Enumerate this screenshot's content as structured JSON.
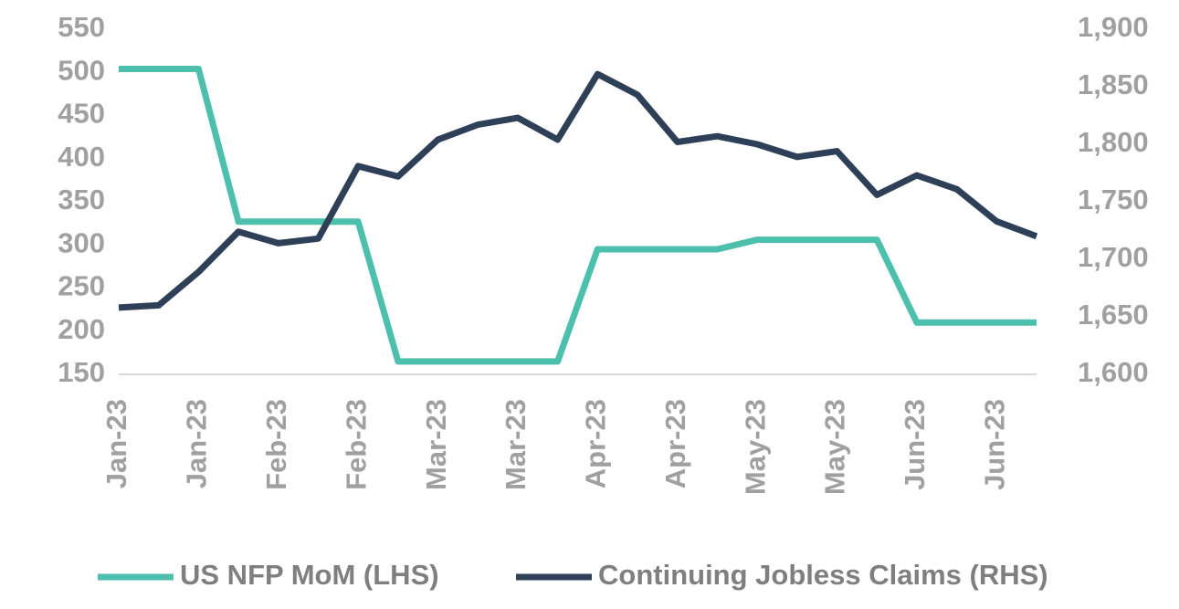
{
  "chart_data": {
    "type": "line",
    "categories": [
      "Jan-23",
      null,
      "Jan-23",
      null,
      "Feb-23",
      null,
      "Feb-23",
      null,
      "Mar-23",
      null,
      "Mar-23",
      null,
      "Apr-23",
      null,
      "Apr-23",
      null,
      "May-23",
      null,
      "May-23",
      null,
      "Jun-23",
      null,
      "Jun-23",
      null
    ],
    "series": [
      {
        "name": "US NFP MoM (LHS)",
        "color": "#4dbfad",
        "values": [
          504,
          504,
          504,
          327,
          327,
          327,
          327,
          165,
          165,
          165,
          165,
          165,
          295,
          295,
          295,
          295,
          306,
          306,
          306,
          306,
          210,
          210,
          210,
          210
        ]
      },
      {
        "name": "Continuing Jobless Claims (RHS)",
        "color": "#2e4057",
        "axis": "y2",
        "values": [
          1658,
          1660,
          1689,
          1724,
          1714,
          1718,
          1781,
          1772,
          1804,
          1817,
          1823,
          1804,
          1861,
          1843,
          1802,
          1807,
          1800,
          1789,
          1794,
          1756,
          1773,
          1761,
          1733,
          1720
        ]
      }
    ],
    "ylim": [
      150,
      550
    ],
    "yticks": [
      150,
      200,
      250,
      300,
      350,
      400,
      450,
      500,
      550
    ],
    "y2lim": [
      1600,
      1900
    ],
    "y2ticks": [
      {
        "value": 1600,
        "label": "1,600"
      },
      {
        "value": 1650,
        "label": "1,650"
      },
      {
        "value": 1700,
        "label": "1,700"
      },
      {
        "value": 1750,
        "label": "1,750"
      },
      {
        "value": 1800,
        "label": "1,800"
      },
      {
        "value": 1850,
        "label": "1,850"
      },
      {
        "value": 1900,
        "label": "1,900"
      }
    ],
    "legend": "bottom"
  }
}
